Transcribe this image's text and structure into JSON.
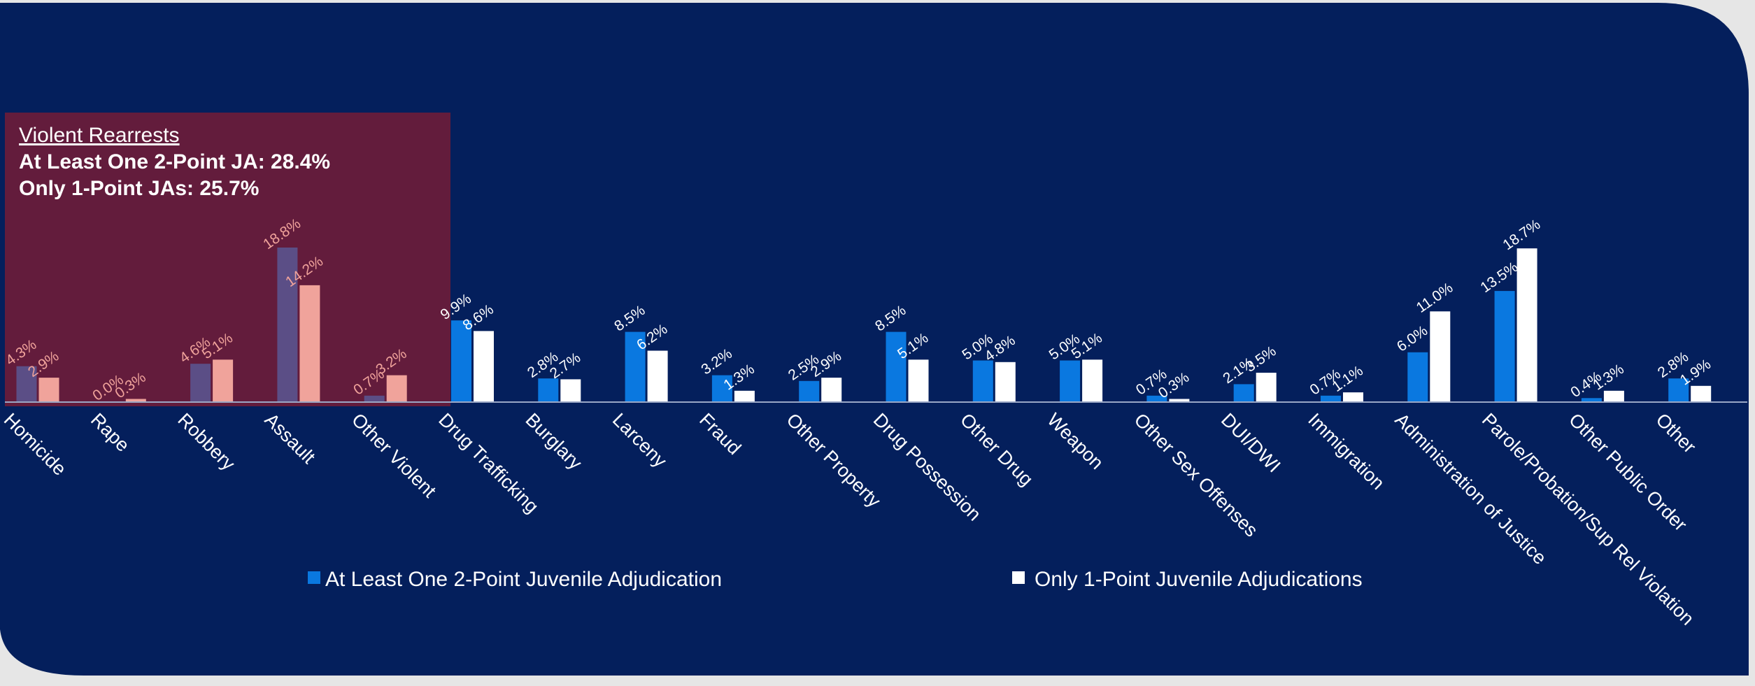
{
  "chart_data": {
    "type": "bar",
    "categories": [
      "Homicide",
      "Rape",
      "Robbery",
      "Assault",
      "Other Violent",
      "Drug Trafficking",
      "Burglary",
      "Larceny",
      "Fraud",
      "Other Property",
      "Drug Possession",
      "Other Drug",
      "Weapon",
      "Other Sex Offenses",
      "DUI/DWI",
      "Immigration",
      "Administration of Justice",
      "Parole/Probation/Sup Rel Violation",
      "Other Public Order",
      "Other"
    ],
    "series": [
      {
        "name": "At Least One 2-Point Juvenile Adjudication",
        "values": [
          4.3,
          0.0,
          4.6,
          18.8,
          0.7,
          9.9,
          2.8,
          8.5,
          3.2,
          2.5,
          8.5,
          5.0,
          5.0,
          0.7,
          2.1,
          0.7,
          6.0,
          13.5,
          0.4,
          2.8
        ],
        "labels": [
          "4.3%",
          "0.0%",
          "4.6%",
          "18.8%",
          "0.7%",
          "9.9%",
          "2.8%",
          "8.5%",
          "3.2%",
          "2.5%",
          "8.5%",
          "5.0%",
          "5.0%",
          "0.7%",
          "2.1%",
          "0.7%",
          "6.0%",
          "13.5%",
          "0.4%",
          "2.8%"
        ],
        "color": "#0a78e0"
      },
      {
        "name": "Only 1-Point Juvenile Adjudications",
        "values": [
          2.9,
          0.3,
          5.1,
          14.2,
          3.2,
          8.6,
          2.7,
          6.2,
          1.3,
          2.9,
          5.1,
          4.8,
          5.1,
          0.3,
          3.5,
          1.1,
          11.0,
          18.7,
          1.3,
          1.9
        ],
        "labels": [
          "2.9%",
          "0.3%",
          "5.1%",
          "14.2%",
          "3.2%",
          "8.6%",
          "2.7%",
          "6.2%",
          "1.3%",
          "2.9%",
          "5.1%",
          "4.8%",
          "5.1%",
          "0.3%",
          "3.5%",
          "1.1%",
          "11.0%",
          "18.7%",
          "1.3%",
          "1.9%"
        ],
        "color": "#ffffff"
      }
    ],
    "ylim": [
      0,
      20
    ],
    "grid": false,
    "legend_position": "bottom",
    "highlight": {
      "categories": [
        "Homicide",
        "Rape",
        "Robbery",
        "Assault",
        "Other Violent"
      ],
      "title": "Violent Rearrests",
      "lines": [
        "At Least One 2-Point JA:  28.4%",
        "Only 1-Point JAs:  25.7%"
      ]
    }
  },
  "colors": {
    "panel": "#041f5c",
    "highlight_box": "#631c3c",
    "highlight_series1": "#5b4e86",
    "highlight_series2": "#f0a39b",
    "highlight_label": "#f0a39b",
    "text": "#ffffff"
  }
}
